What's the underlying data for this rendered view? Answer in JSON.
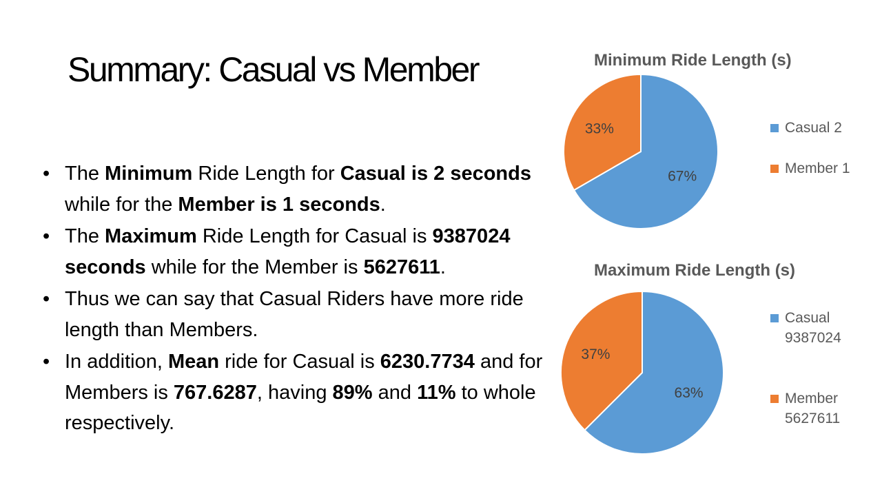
{
  "slide": {
    "title": "Summary: Casual vs Member"
  },
  "bullets": [
    [
      {
        "t": "The ",
        "b": false
      },
      {
        "t": "Minimum",
        "b": true
      },
      {
        "t": " Ride Length for ",
        "b": false
      },
      {
        "t": "Casual is 2 seconds",
        "b": true
      },
      {
        "t": " while for the ",
        "b": false
      },
      {
        "t": "Member is 1 seconds",
        "b": true
      },
      {
        "t": ".",
        "b": false
      }
    ],
    [
      {
        "t": "The ",
        "b": false
      },
      {
        "t": "Maximum",
        "b": true
      },
      {
        "t": " Ride Length for Casual is ",
        "b": false
      },
      {
        "t": "9387024 seconds",
        "b": true
      },
      {
        "t": " while for the Member is ",
        "b": false
      },
      {
        "t": "5627611",
        "b": true
      },
      {
        "t": ".",
        "b": false
      }
    ],
    [
      {
        "t": "Thus we can say that Casual Riders have more ride length than Members.",
        "b": false
      }
    ],
    [
      {
        "t": "In addition, ",
        "b": false
      },
      {
        "t": "Mean",
        "b": true
      },
      {
        "t": " ride for Casual is ",
        "b": false
      },
      {
        "t": "6230.7734",
        "b": true
      },
      {
        "t": " and for Members is ",
        "b": false
      },
      {
        "t": "767.6287",
        "b": true
      },
      {
        "t": ", having ",
        "b": false
      },
      {
        "t": "89%",
        "b": true
      },
      {
        "t": " and ",
        "b": false
      },
      {
        "t": "11%",
        "b": true
      },
      {
        "t": " to whole respectively.",
        "b": false
      }
    ]
  ],
  "colors": {
    "casual": "#5B9BD5",
    "member": "#ED7D31",
    "chart_text": "#595959",
    "slice_label": "#404040"
  },
  "chart_data": [
    {
      "type": "pie",
      "title": "Minimum Ride Length (s)",
      "legend_position": "right",
      "categories": [
        "Casual",
        "Member"
      ],
      "values": [
        2,
        1
      ],
      "data_labels": [
        "67%",
        "33%"
      ],
      "legend": [
        [
          "Casual 2"
        ],
        [
          "Member 1"
        ]
      ]
    },
    {
      "type": "pie",
      "title": "Maximum Ride Length (s)",
      "legend_position": "right",
      "categories": [
        "Casual",
        "Member"
      ],
      "values": [
        9387024,
        5627611
      ],
      "data_labels": [
        "63%",
        "37%"
      ],
      "legend": [
        [
          "Casual",
          "9387024"
        ],
        [
          "Member",
          "5627611"
        ]
      ]
    }
  ]
}
